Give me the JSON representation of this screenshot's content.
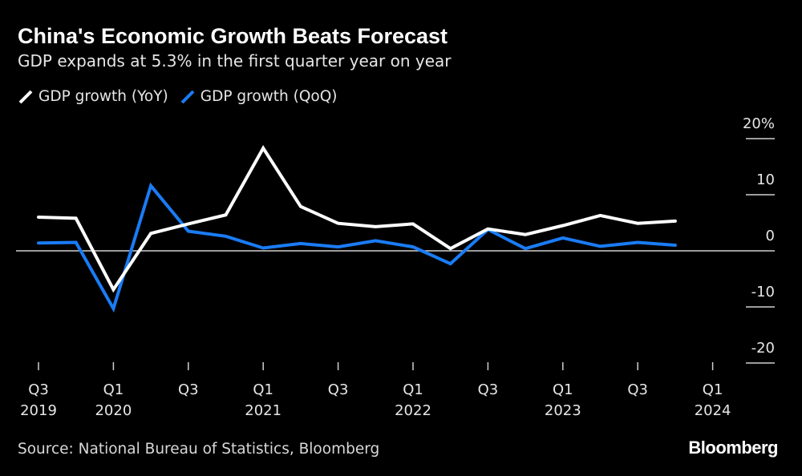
{
  "title": "China's Economic Growth Beats Forecast",
  "subtitle": "GDP expands at 5.3% in the first quarter year on year",
  "source": "Source: National Bureau of Statistics, Bloomberg",
  "logo": "Bloomberg",
  "colors": {
    "yoy": "#ffffff",
    "qoq": "#1a7cf5",
    "background": "#000000"
  },
  "chart_data": {
    "type": "line",
    "title": "China's Economic Growth Beats Forecast",
    "subtitle": "GDP expands at 5.3% in the first quarter year on year",
    "x": [
      "Q3 2019",
      "Q4 2019",
      "Q1 2020",
      "Q2 2020",
      "Q3 2020",
      "Q4 2020",
      "Q1 2021",
      "Q2 2021",
      "Q3 2021",
      "Q4 2021",
      "Q1 2022",
      "Q2 2022",
      "Q3 2022",
      "Q4 2022",
      "Q1 2023",
      "Q2 2023",
      "Q3 2023",
      "Q4 2023"
    ],
    "series": [
      {
        "name": "GDP growth (YoY)",
        "color": "#ffffff",
        "values": [
          6.0,
          5.8,
          -6.9,
          3.1,
          4.8,
          6.4,
          18.3,
          7.9,
          4.9,
          4.3,
          4.8,
          0.4,
          3.9,
          2.9,
          4.5,
          6.3,
          4.9,
          5.3
        ]
      },
      {
        "name": "GDP growth (QoQ)",
        "color": "#1a7cf5",
        "values": [
          1.4,
          1.5,
          -10.3,
          11.6,
          3.5,
          2.6,
          0.5,
          1.3,
          0.7,
          1.8,
          0.7,
          -2.3,
          3.8,
          0.4,
          2.3,
          0.8,
          1.5,
          1.0
        ]
      }
    ],
    "x_ticks": [
      {
        "q": "Q3",
        "year": "2019"
      },
      {
        "q": "Q1",
        "year": "2020"
      },
      {
        "q": "Q3",
        "year": ""
      },
      {
        "q": "Q1",
        "year": "2021"
      },
      {
        "q": "Q3",
        "year": ""
      },
      {
        "q": "Q1",
        "year": "2022"
      },
      {
        "q": "Q3",
        "year": ""
      },
      {
        "q": "Q1",
        "year": "2023"
      },
      {
        "q": "Q3",
        "year": ""
      },
      {
        "q": "Q1",
        "year": "2024"
      }
    ],
    "y_ticks": [
      "20%",
      "10",
      "0",
      "-10",
      "-20"
    ],
    "y_tick_values": [
      20,
      10,
      0,
      -10,
      -20
    ],
    "ylim": [
      -20,
      20
    ],
    "grid": false,
    "zero_line": true,
    "legend": "top-left"
  }
}
